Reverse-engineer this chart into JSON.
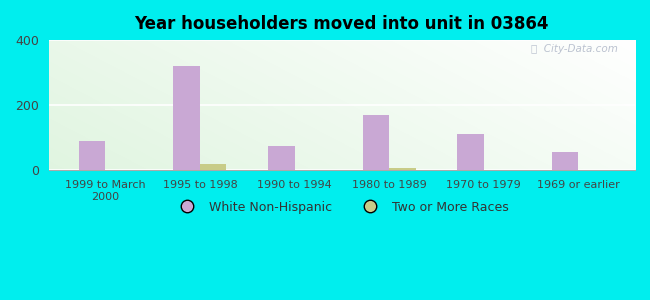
{
  "title": "Year householders moved into unit in 03864",
  "categories": [
    "1999 to March\n2000",
    "1995 to 1998",
    "1990 to 1994",
    "1980 to 1989",
    "1970 to 1979",
    "1969 or earlier"
  ],
  "white_non_hispanic": [
    90,
    320,
    75,
    170,
    110,
    55
  ],
  "two_or_more_races": [
    0,
    18,
    0,
    8,
    0,
    0
  ],
  "color_white": "#c9a8d4",
  "color_two_more": "#c8cc88",
  "ylim": [
    0,
    400
  ],
  "yticks": [
    0,
    200,
    400
  ],
  "bar_width": 0.28,
  "background_color_outer": "#00eeee",
  "watermark": "ⓘ  City-Data.com"
}
